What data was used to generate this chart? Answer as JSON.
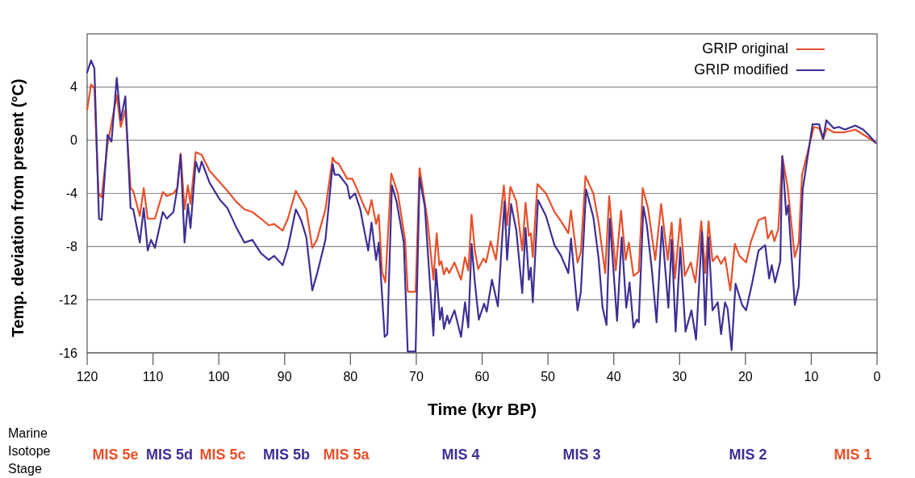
{
  "chart_data": {
    "type": "line",
    "xlabel": "Time (kyr BP)",
    "ylabel": "Temp. deviation from present (°C)",
    "xlim": [
      120,
      0
    ],
    "xticks": [
      120,
      110,
      100,
      90,
      80,
      70,
      60,
      50,
      40,
      30,
      20,
      10,
      0
    ],
    "ylim": [
      -16,
      8
    ],
    "yticks": [
      4,
      0,
      -4,
      -8,
      -12,
      -16
    ],
    "grid": "y",
    "legend": "top right",
    "marker": "none",
    "line_style": "solid",
    "annotations": [
      "Marine Isotope Stage",
      "MIS 5e",
      "MIS 5d",
      "MIS 5c",
      "MIS 5b",
      "MIS 5a",
      "MIS 4",
      "MIS 3",
      "MIS 2",
      "MIS 1"
    ],
    "series": [
      {
        "name": "GRIP original",
        "color": "#e8502a",
        "x": [
          120,
          119.4,
          118.9,
          118.3,
          117.8,
          116.9,
          115.5,
          114.9,
          114.2,
          113.4,
          113,
          112,
          111.4,
          110.8,
          109.7,
          108.5,
          107.9,
          106.9,
          106.3,
          105.8,
          105.2,
          104.7,
          104.3,
          103.5,
          102.6,
          101.4,
          99.8,
          98.7,
          97.4,
          96.1,
          94.9,
          93.6,
          92.4,
          91.6,
          90.3,
          89.5,
          88.3,
          87.5,
          86.7,
          85.8,
          85.1,
          83.8,
          82.7,
          82.4,
          81.75,
          80.5,
          79.7,
          78.9,
          77.9,
          77.3,
          76.8,
          76.1,
          75.7,
          75.2,
          74.7,
          73.8,
          72.8,
          71.7,
          71.3,
          70.1,
          69.5,
          68.3,
          67.4,
          66.9,
          66.5,
          66.2,
          65.8,
          65.4,
          65,
          64.2,
          63.2,
          62.6,
          62.1,
          61.6,
          61.1,
          60.6,
          59.8,
          59.4,
          58.7,
          57.9,
          56.7,
          56.2,
          55.7,
          54.8,
          53.9,
          53.4,
          52.9,
          52.6,
          52.3,
          51.6,
          50.3,
          49,
          48,
          46.9,
          46.5,
          45.5,
          45,
          44.3,
          43.1,
          42.3,
          41.3,
          40.7,
          39.7,
          38.9,
          38.2,
          37.7,
          37,
          36.2,
          35.6,
          34.8,
          33.7,
          32.8,
          31.8,
          31.2,
          30.7,
          29.9,
          29.2,
          28.3,
          27.6,
          26.7,
          26.1,
          25.6,
          25,
          24.3,
          23.7,
          23.1,
          22.3,
          21.6,
          20.9,
          19.9,
          19.2,
          18,
          17,
          16.6,
          16,
          15.6,
          15,
          14.4,
          13.6,
          12.5,
          11.9,
          11.4,
          10.2,
          9.6,
          8.8,
          8.2,
          7.6,
          6.6,
          4.9,
          3.3,
          1.7,
          0.2
        ],
        "values": [
          2.3,
          4.2,
          3.9,
          -4,
          -4.3,
          -0.3,
          3.4,
          1,
          2.3,
          -3.6,
          -3.8,
          -5.7,
          -3.6,
          -5.9,
          -5.9,
          -3.9,
          -4.2,
          -4,
          -3.6,
          -1,
          -5.2,
          -3.4,
          -4.8,
          -0.9,
          -1.1,
          -2.3,
          -3.2,
          -3.8,
          -4.6,
          -5.2,
          -5.4,
          -5.9,
          -6.4,
          -6.3,
          -6.8,
          -5.9,
          -3.8,
          -4.5,
          -5.2,
          -8.1,
          -7.5,
          -5.2,
          -1.3,
          -1.6,
          -1.8,
          -2.9,
          -2.9,
          -3.8,
          -5,
          -5.6,
          -4.5,
          -6.3,
          -5.6,
          -9.9,
          -10.7,
          -2.5,
          -4,
          -7.5,
          -11.4,
          -11.4,
          -2.1,
          -6,
          -10.5,
          -7,
          -9.4,
          -9.1,
          -10.1,
          -9.6,
          -10,
          -9.2,
          -10.5,
          -8.8,
          -9.8,
          -5.6,
          -8.3,
          -9.7,
          -8.9,
          -9.2,
          -7.6,
          -9,
          -3.4,
          -6.4,
          -3.5,
          -4.6,
          -8.3,
          -4.7,
          -7.2,
          -7,
          -8.8,
          -3.3,
          -4,
          -5.4,
          -6.1,
          -7,
          -5.3,
          -9.2,
          -8.4,
          -2.7,
          -4,
          -6.2,
          -10,
          -4.2,
          -9.8,
          -5.3,
          -9,
          -7.7,
          -10.2,
          -9.9,
          -3.6,
          -5.1,
          -9,
          -4.8,
          -9,
          -6.2,
          -10.4,
          -5.9,
          -10.2,
          -9.2,
          -10.7,
          -6.1,
          -10,
          -6.1,
          -9.1,
          -8.7,
          -9.3,
          -8.8,
          -11.3,
          -7.8,
          -8.7,
          -9.2,
          -7.7,
          -6,
          -5.8,
          -7.4,
          -6.8,
          -7.6,
          -6.7,
          -1.2,
          -3.5,
          -8.8,
          -7.7,
          -2.6,
          -0.2,
          1,
          0.9,
          0.1,
          0.9,
          0.6,
          0.6,
          0.8,
          0.3,
          -0.2
        ]
      },
      {
        "name": "GRIP modified",
        "color": "#3d2f95",
        "x": [
          120,
          119.4,
          118.9,
          118.2,
          117.8,
          116.9,
          116.3,
          115.5,
          114.9,
          114.2,
          113.4,
          113,
          112,
          111.4,
          110.8,
          110.3,
          109.7,
          108.5,
          107.9,
          106.9,
          106.3,
          105.8,
          105.2,
          104.7,
          104.3,
          103.5,
          103,
          102.6,
          101.4,
          99.8,
          98.7,
          97.4,
          96.1,
          94.9,
          93.6,
          92.4,
          91.6,
          90.3,
          89.5,
          88.3,
          87.5,
          86.7,
          85.8,
          85.1,
          83.8,
          82.7,
          82.4,
          81.75,
          80.5,
          80.1,
          79.3,
          78.5,
          77.9,
          77.3,
          76.8,
          76.1,
          75.7,
          74.8,
          74.4,
          73.7,
          73,
          71.9,
          71.3,
          70.1,
          69.5,
          68.7,
          67.4,
          67,
          66.4,
          66.1,
          65.8,
          65.3,
          65,
          64.2,
          63.2,
          62.6,
          62.1,
          61.6,
          61.1,
          60.5,
          59.7,
          59.3,
          58.5,
          57.6,
          56.6,
          56.2,
          55.6,
          54.8,
          53.9,
          53.4,
          52.9,
          52.6,
          52.3,
          51.5,
          50.3,
          49,
          48,
          46.9,
          46.5,
          45.5,
          45,
          44.2,
          43.1,
          42.3,
          41.7,
          41.1,
          40.6,
          39.5,
          38.8,
          38.1,
          37.6,
          37,
          36.5,
          36.2,
          35.5,
          35,
          34.2,
          33.5,
          32.7,
          31.7,
          31.2,
          30.6,
          29.9,
          29.1,
          28.2,
          27.5,
          26.6,
          26.1,
          25.6,
          25,
          24.2,
          23.7,
          23.1,
          22.7,
          22.1,
          21.5,
          20.5,
          19.9,
          19,
          18,
          17,
          16.4,
          16,
          15.5,
          14.7,
          14.4,
          13.8,
          13.5,
          12.5,
          11.9,
          11.3,
          9.8,
          8.8,
          8.2,
          7.7,
          6.6,
          5.8,
          4.9,
          3.3,
          2.1,
          1.3,
          0.2
        ],
        "values": [
          5.1,
          6,
          5.4,
          -5.9,
          -6,
          0.4,
          -0.1,
          4.7,
          1.5,
          3.3,
          -5.1,
          -5.2,
          -7.7,
          -5.1,
          -8.3,
          -7.5,
          -8.1,
          -5.4,
          -5.9,
          -5.4,
          -3.6,
          -1.1,
          -7.7,
          -4.8,
          -6.6,
          -1.6,
          -2.4,
          -1.6,
          -3.2,
          -4.5,
          -5.1,
          -6.5,
          -7.7,
          -7.5,
          -8.5,
          -9,
          -8.7,
          -9.4,
          -8.1,
          -5.2,
          -6,
          -7.3,
          -11.3,
          -10.1,
          -7.5,
          -1.8,
          -2.6,
          -2.6,
          -3.4,
          -4.4,
          -4,
          -5.2,
          -6.8,
          -8.3,
          -6.2,
          -9,
          -7.7,
          -14.8,
          -14.6,
          -3.4,
          -4.6,
          -7.7,
          -15.9,
          -15.9,
          -2.8,
          -5,
          -14.7,
          -9.7,
          -13.5,
          -12.6,
          -14.2,
          -13.2,
          -13.8,
          -12.8,
          -14.8,
          -12.2,
          -14.1,
          -7.8,
          -10.7,
          -13.5,
          -12.3,
          -12.9,
          -10.5,
          -12.5,
          -4.6,
          -9,
          -4.8,
          -6.8,
          -11.5,
          -6.6,
          -10.5,
          -9.6,
          -12.2,
          -4.5,
          -5.7,
          -7.9,
          -8.7,
          -10,
          -7.4,
          -12.8,
          -11.4,
          -3.7,
          -5.8,
          -8.9,
          -12.6,
          -13.9,
          -5.9,
          -13.6,
          -7.3,
          -12.6,
          -10.7,
          -14.1,
          -13.5,
          -13.7,
          -5,
          -6.3,
          -9.8,
          -13.7,
          -6.5,
          -12.6,
          -7.5,
          -14.4,
          -8.1,
          -14.4,
          -12.8,
          -15,
          -6.9,
          -13.9,
          -7.3,
          -12.8,
          -12.2,
          -14.6,
          -12.2,
          -12.7,
          -15.8,
          -10.8,
          -12.4,
          -12.8,
          -10.8,
          -8.3,
          -7.9,
          -10.4,
          -9.4,
          -10.7,
          -9.1,
          -1.2,
          -5.6,
          -4.9,
          -12.4,
          -11,
          -3.7,
          1.2,
          1.2,
          0.1,
          1.5,
          0.9,
          1,
          0.8,
          1.1,
          0.8,
          0.4,
          -0.2
        ]
      }
    ]
  }
}
